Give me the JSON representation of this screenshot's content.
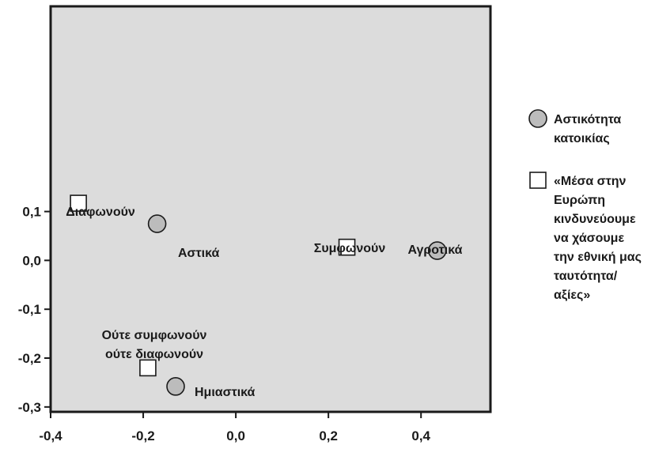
{
  "chart_data": {
    "type": "scatter",
    "title": "",
    "xlabel": "",
    "ylabel": "",
    "xlim": [
      -0.4,
      0.55
    ],
    "ylim": [
      -0.31,
      0.52
    ],
    "xticks": [
      "-0,4",
      "-0,2",
      "0,0",
      "0,2",
      "0,4"
    ],
    "yticks": [
      "-0,3",
      "-0,2",
      "-0,1",
      "0,0",
      "0,1"
    ],
    "grid": false,
    "legend_position": "right",
    "colors": {
      "plot_background": "#dcdcdc",
      "circle_fill": "#bcbcbc",
      "square_fill": "#ffffff",
      "stroke": "#1a1a1a"
    },
    "series": [
      {
        "name": "Αστικότητα κατοικίας",
        "marker": "circle",
        "points": [
          {
            "label": "Αστικά",
            "x": -0.17,
            "y": 0.075
          },
          {
            "label": "Αγροτικά",
            "x": 0.435,
            "y": 0.02
          },
          {
            "label": "Ημιαστικά",
            "x": -0.13,
            "y": -0.258
          }
        ]
      },
      {
        "name": "«Μέσα στην Ευρώπη κινδυνεύουμε να χάσουμε την εθνική μας ταυτότητα/αξίες»",
        "marker": "square",
        "points": [
          {
            "label": "Διαφωνούν",
            "x": -0.34,
            "y": 0.117
          },
          {
            "label": "Συμφωνούν",
            "x": 0.24,
            "y": 0.027
          },
          {
            "label": "Ούτε συμφωνούν ούτε διαφωνούν",
            "x": -0.19,
            "y": -0.22
          }
        ]
      }
    ],
    "legend": [
      {
        "marker": "circle",
        "lines": [
          "Αστικότητα",
          "κατοικίας"
        ]
      },
      {
        "marker": "square",
        "lines": [
          "«Μέσα στην",
          "Ευρώπη",
          "κινδυνεύουμε",
          "να χάσουμε",
          "την εθνική μας",
          "ταυτότητα/",
          "αξίες»"
        ]
      }
    ],
    "point_labels": [
      {
        "lines": [
          "Διαφωνούν"
        ]
      },
      {
        "lines": [
          "Αστικά"
        ]
      },
      {
        "lines": [
          "Συμφωνούν"
        ]
      },
      {
        "lines": [
          "Αγροτικά"
        ]
      },
      {
        "lines": [
          "Ούτε συμφωνούν",
          "ούτε διαφωνούν"
        ]
      },
      {
        "lines": [
          "Ημιαστικά"
        ]
      }
    ]
  }
}
